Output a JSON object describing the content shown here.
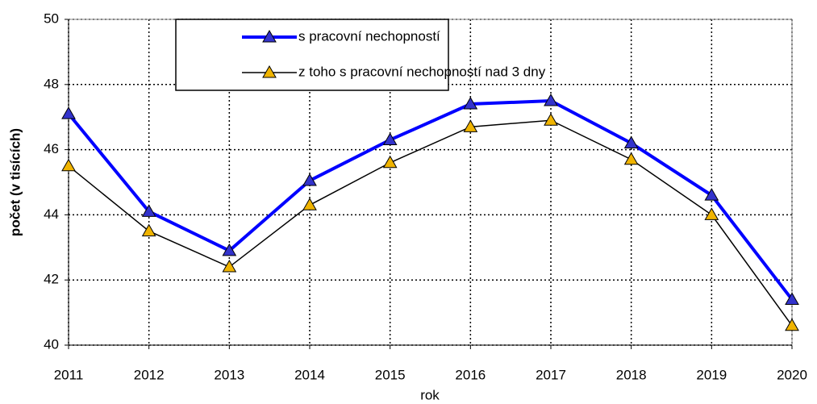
{
  "chart_data": {
    "type": "line",
    "x": [
      2011,
      2012,
      2013,
      2014,
      2015,
      2016,
      2017,
      2018,
      2019,
      2020
    ],
    "xlim": [
      2011,
      2020
    ],
    "xticks": [
      2011,
      2012,
      2013,
      2014,
      2015,
      2016,
      2017,
      2018,
      2019,
      2020
    ],
    "ylim": [
      40,
      50
    ],
    "yticks": [
      40,
      42,
      44,
      46,
      48,
      50
    ],
    "x_label": "rok",
    "y_label": "počet (v tisících)",
    "grid": true,
    "legend": "top",
    "series": [
      {
        "name": "s pracovní nechopností",
        "color": "#0000ff",
        "marker_color": "#3333cc",
        "line_width": 4,
        "values": [
          47.1,
          44.1,
          42.9,
          45.05,
          46.3,
          47.4,
          47.5,
          46.2,
          44.6,
          41.4
        ]
      },
      {
        "name": "z toho s pracovní nechopností nad 3 dny",
        "color": "#000000",
        "marker_color": "#f0b400",
        "line_width": 1.5,
        "values": [
          45.5,
          43.5,
          42.4,
          44.3,
          45.6,
          46.7,
          46.9,
          45.7,
          44.0,
          40.6
        ]
      }
    ]
  }
}
